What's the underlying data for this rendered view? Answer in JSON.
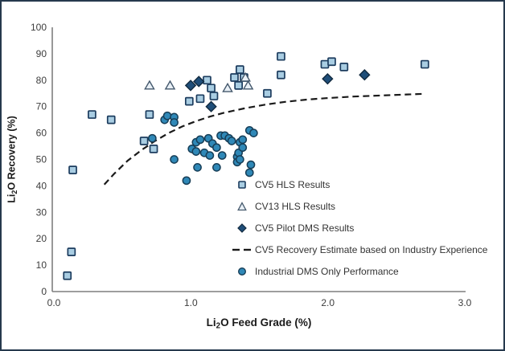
{
  "frame": {
    "background": "#ffffff",
    "border_color": "#26394d"
  },
  "chart_data": {
    "type": "scatter",
    "title": "",
    "xlabel": {
      "pre": "Li",
      "sub": "2",
      "post": "O Feed Grade (%)"
    },
    "ylabel": {
      "pre": "Li",
      "sub": "2",
      "post": "O Recovery (%)"
    },
    "xlim": [
      0,
      3
    ],
    "ylim": [
      0,
      100
    ],
    "x_ticks": [
      "0.0",
      "1.0",
      "2.0",
      "3.0"
    ],
    "x_tick_values": [
      0,
      1,
      2,
      3
    ],
    "y_ticks": [
      "0",
      "10",
      "20",
      "30",
      "40",
      "50",
      "60",
      "70",
      "80",
      "90",
      "100"
    ],
    "y_tick_values": [
      0,
      10,
      20,
      30,
      40,
      50,
      60,
      70,
      80,
      90,
      100
    ],
    "grid": false,
    "legend_position": "inside-lower-right",
    "axis_color": "#7f7f7f",
    "series": [
      {
        "id": "cv5-hls",
        "name": "CV5 HLS Results",
        "marker": "square",
        "fill": "#A9CDE2",
        "stroke": "#1C3C5E",
        "points": [
          [
            0.11,
            6
          ],
          [
            0.14,
            15
          ],
          [
            0.15,
            46
          ],
          [
            0.29,
            67
          ],
          [
            0.43,
            65
          ],
          [
            0.67,
            57
          ],
          [
            0.71,
            67
          ],
          [
            0.74,
            54
          ],
          [
            1.0,
            72
          ],
          [
            1.08,
            73
          ],
          [
            1.13,
            80
          ],
          [
            1.16,
            77
          ],
          [
            1.18,
            74
          ],
          [
            1.33,
            81
          ],
          [
            1.36,
            78
          ],
          [
            1.37,
            84
          ],
          [
            1.4,
            81
          ],
          [
            1.57,
            75
          ],
          [
            1.67,
            82
          ],
          [
            1.67,
            89
          ],
          [
            1.99,
            86
          ],
          [
            2.04,
            87
          ],
          [
            2.13,
            85
          ],
          [
            2.72,
            86
          ]
        ]
      },
      {
        "id": "cv13-hls",
        "name": "CV13 HLS Results",
        "marker": "triangle",
        "fill": "#E9F0F6",
        "stroke": "#44586C",
        "points": [
          [
            0.71,
            78
          ],
          [
            0.86,
            78
          ],
          [
            1.28,
            77
          ],
          [
            1.41,
            81
          ],
          [
            1.43,
            78
          ]
        ]
      },
      {
        "id": "cv5-pilot-dms",
        "name": "CV5 Pilot DMS Results",
        "marker": "diamond",
        "fill": "#1F4E79",
        "stroke": "#122A3F",
        "points": [
          [
            1.01,
            78
          ],
          [
            1.07,
            79.5
          ],
          [
            1.16,
            70
          ],
          [
            2.01,
            80.5
          ],
          [
            2.28,
            82
          ]
        ]
      },
      {
        "id": "cv5-estimate",
        "name": "CV5 Recovery Estimate based on Industry Experience",
        "marker": "dashed-line",
        "color": "#1A1A1A",
        "points": [
          [
            0.38,
            40.5
          ],
          [
            0.45,
            44.5
          ],
          [
            0.55,
            49.5
          ],
          [
            0.65,
            53.5
          ],
          [
            0.75,
            57
          ],
          [
            0.85,
            60
          ],
          [
            0.95,
            62.5
          ],
          [
            1.05,
            64.5
          ],
          [
            1.15,
            66.2
          ],
          [
            1.25,
            67.6
          ],
          [
            1.4,
            69.3
          ],
          [
            1.55,
            70.7
          ],
          [
            1.7,
            71.8
          ],
          [
            1.85,
            72.6
          ],
          [
            2.0,
            73.2
          ],
          [
            2.2,
            73.8
          ],
          [
            2.4,
            74.2
          ],
          [
            2.55,
            74.5
          ],
          [
            2.7,
            74.8
          ]
        ]
      },
      {
        "id": "industrial-dms",
        "name": "Industrial DMS Only Performance",
        "marker": "circle",
        "fill": "#2F88B7",
        "stroke": "#173E57",
        "points": [
          [
            0.73,
            58
          ],
          [
            0.82,
            65
          ],
          [
            0.84,
            66.5
          ],
          [
            0.89,
            66
          ],
          [
            0.89,
            64
          ],
          [
            0.89,
            50
          ],
          [
            0.98,
            42
          ],
          [
            1.02,
            54
          ],
          [
            1.05,
            56.5
          ],
          [
            1.05,
            53
          ],
          [
            1.06,
            47
          ],
          [
            1.08,
            57.5
          ],
          [
            1.11,
            52.5
          ],
          [
            1.14,
            58
          ],
          [
            1.15,
            51.5
          ],
          [
            1.17,
            56
          ],
          [
            1.2,
            54.5
          ],
          [
            1.2,
            47
          ],
          [
            1.23,
            59
          ],
          [
            1.26,
            59
          ],
          [
            1.29,
            58
          ],
          [
            1.24,
            51.5
          ],
          [
            1.31,
            57
          ],
          [
            1.35,
            51
          ],
          [
            1.35,
            49
          ],
          [
            1.36,
            52.5
          ],
          [
            1.37,
            56.5
          ],
          [
            1.37,
            50
          ],
          [
            1.39,
            57.5
          ],
          [
            1.39,
            54.5
          ],
          [
            1.44,
            61
          ],
          [
            1.47,
            60
          ],
          [
            1.44,
            45
          ],
          [
            1.45,
            48
          ]
        ]
      }
    ]
  }
}
